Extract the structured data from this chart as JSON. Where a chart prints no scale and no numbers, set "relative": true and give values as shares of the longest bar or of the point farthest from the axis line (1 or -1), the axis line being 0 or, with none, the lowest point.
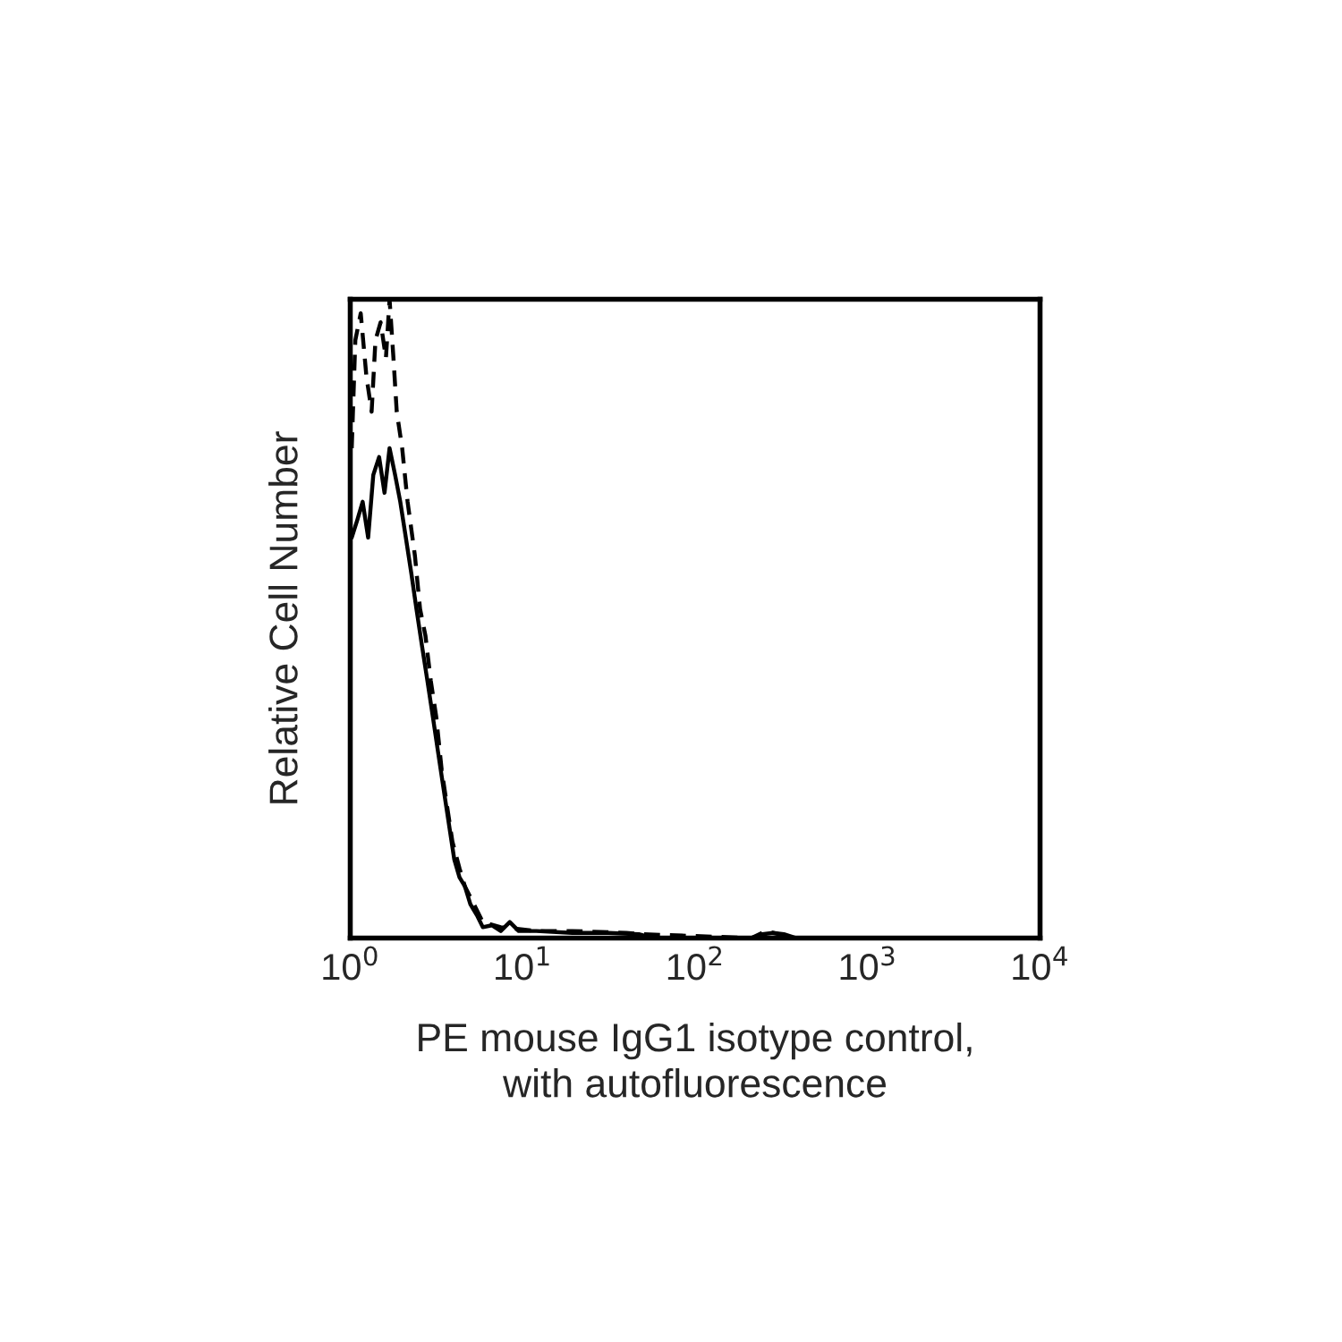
{
  "chart_data": {
    "type": "line",
    "xlabel": "PE mouse IgG1 isotype control,\nwith autofluorescence",
    "ylabel": "Relative Cell Number",
    "relative": true,
    "log": "x",
    "xlim": [
      1,
      10000
    ],
    "xticks": [
      {
        "value": 1,
        "label": "10$^{0}$"
      },
      {
        "value": 10,
        "label": "10$^{1}$"
      },
      {
        "value": 100,
        "label": "10$^{2}$"
      },
      {
        "value": 1000,
        "label": "10$^{3}$"
      },
      {
        "value": 10000,
        "label": "10$^{4}$"
      }
    ],
    "tick_labels": "x",
    "grid": false,
    "legend": false,
    "series": [
      {
        "color": "#000000",
        "line_style": "solid",
        "x": [
          1.02,
          1.1,
          1.18,
          1.27,
          1.36,
          1.47,
          1.58,
          1.69,
          1.82,
          1.95,
          2.1,
          2.26,
          2.42,
          2.6,
          2.8,
          3.01,
          3.23,
          3.47,
          3.73,
          4.01,
          4.3,
          4.62,
          4.97,
          5.47,
          5.87,
          6.62,
          7.46,
          8.41,
          9.48,
          12.0,
          19.4,
          31.3,
          47.1,
          57.0,
          212,
          245,
          283,
          327,
          386
        ],
        "values": [
          0.627,
          0.655,
          0.683,
          0.627,
          0.725,
          0.753,
          0.697,
          0.767,
          0.725,
          0.683,
          0.627,
          0.571,
          0.515,
          0.459,
          0.403,
          0.347,
          0.291,
          0.235,
          0.179,
          0.123,
          0.095,
          0.081,
          0.053,
          0.034,
          0.017,
          0.02,
          0.011,
          0.025,
          0.011,
          0.011,
          0.008,
          0.008,
          0.006,
          0,
          0,
          0.006,
          0.008,
          0.006,
          0
        ]
      },
      {
        "color": "#000000",
        "line_style": "dashed",
        "x": [
          1.02,
          1.07,
          1.15,
          1.24,
          1.33,
          1.4,
          1.5,
          1.61,
          1.69,
          1.78,
          1.86,
          2.0,
          2.15,
          2.37,
          2.54,
          2.73,
          2.93,
          3.15,
          3.39,
          3.64,
          3.91,
          4.3,
          4.62,
          5.21,
          5.87,
          7.46,
          12.0,
          19.4,
          39.8,
          50.6,
          212,
          257,
          304,
          386
        ],
        "values": [
          0.767,
          0.936,
          0.978,
          0.88,
          0.824,
          0.936,
          0.964,
          0.908,
          1,
          0.908,
          0.824,
          0.767,
          0.683,
          0.599,
          0.515,
          0.473,
          0.403,
          0.347,
          0.263,
          0.207,
          0.151,
          0.109,
          0.081,
          0.053,
          0.025,
          0.017,
          0.011,
          0.011,
          0.008,
          0.006,
          0,
          0.011,
          0.006,
          0
        ]
      }
    ]
  }
}
